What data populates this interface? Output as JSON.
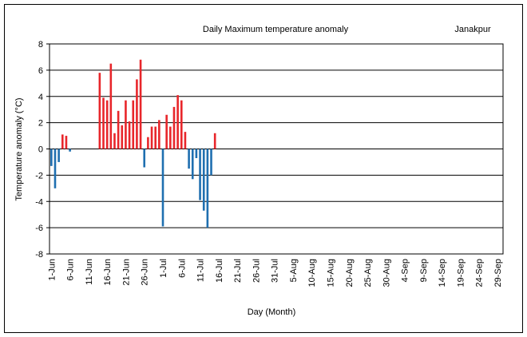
{
  "chart_data": {
    "type": "bar",
    "title": "Daily Maximum temperature anomaly",
    "location": "Janakpur",
    "x_label": "Day (Month)",
    "y_label": "Temperature  anomaly (°C)",
    "categories": [
      "1-Jun",
      null,
      null,
      null,
      null,
      "6-Jun",
      null,
      null,
      null,
      null,
      "11-Jun",
      null,
      null,
      null,
      null,
      "16-Jun",
      null,
      null,
      null,
      null,
      "21-Jun",
      null,
      null,
      null,
      null,
      "26-Jun",
      null,
      null,
      null,
      null,
      "1-Jul",
      null,
      null,
      null,
      null,
      "6-Jul",
      null,
      null,
      null,
      null,
      "11-Jul",
      null,
      null,
      null,
      null,
      "16-Jul",
      null,
      null,
      null,
      null,
      "21-Jul",
      null,
      null,
      null,
      null,
      "26-Jul",
      null,
      null,
      null,
      null,
      "31-Jul",
      null,
      null,
      null,
      null,
      "5-Aug",
      null,
      null,
      null,
      null,
      "10-Aug",
      null,
      null,
      null,
      null,
      "15-Aug",
      null,
      null,
      null,
      null,
      "20-Aug",
      null,
      null,
      null,
      null,
      "25-Aug",
      null,
      null,
      null,
      null,
      "30-Aug",
      null,
      null,
      null,
      null,
      "4-Sep",
      null,
      null,
      null,
      null,
      "9-Sep",
      null,
      null,
      null,
      null,
      "14-Sep",
      null,
      null,
      null,
      null,
      "19-Sep",
      null,
      null,
      null,
      null,
      "24-Sep",
      null,
      null,
      null,
      null,
      "29-Sep",
      null
    ],
    "values": [
      -1.3,
      -3.0,
      -1.0,
      1.1,
      1.0,
      -0.2,
      null,
      null,
      null,
      null,
      null,
      null,
      null,
      5.8,
      3.9,
      3.7,
      6.5,
      1.2,
      2.9,
      1.8,
      3.7,
      2.1,
      3.7,
      5.3,
      6.8,
      -1.4,
      0.9,
      1.7,
      1.7,
      2.2,
      -5.9,
      2.6,
      1.7,
      3.2,
      4.1,
      3.7,
      1.3,
      -1.5,
      -2.3,
      -0.7,
      -3.9,
      -4.7,
      -6.0,
      -2.0,
      1.2,
      null,
      null,
      null,
      null,
      null,
      null,
      null,
      null,
      null,
      null,
      null,
      null,
      null,
      null,
      null,
      null,
      null,
      null,
      null,
      null,
      null,
      null,
      null,
      null,
      null,
      null,
      null,
      null,
      null,
      null,
      null,
      null,
      null,
      null,
      null,
      null,
      null,
      null,
      null,
      null,
      null,
      null,
      null,
      null,
      null,
      null,
      null,
      null,
      null,
      null,
      null,
      null,
      null,
      null,
      null,
      null,
      null,
      null,
      null,
      null,
      null,
      null,
      null,
      null,
      null,
      null,
      null,
      null,
      null,
      null,
      null,
      null,
      null,
      null,
      null,
      null,
      null
    ],
    "positive_color": "#e8262b",
    "negative_color": "#1f6fb0",
    "ylim": [
      -8,
      8
    ],
    "yticks": [
      -8,
      -6,
      -4,
      -2,
      0,
      2,
      4,
      6,
      8
    ],
    "grid": true
  }
}
